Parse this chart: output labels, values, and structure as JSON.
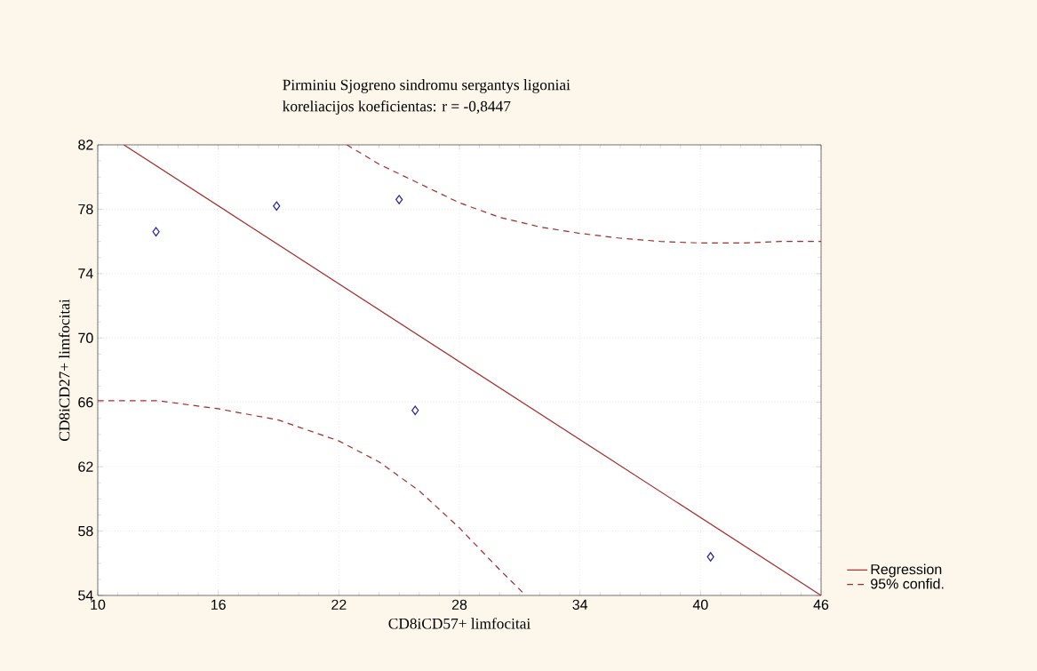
{
  "chart_data": {
    "type": "scatter",
    "title": "Pirminiu Sjogreno sindromu sergantys ligoniai",
    "subtitle": "koreliacijos koeficientas: r = -0,8447",
    "xlabel": "CD8iCD57+ limfocitai",
    "ylabel": "CD8iCD27+ limfocitai",
    "xlim": [
      10,
      46
    ],
    "xticks": [
      10,
      16,
      22,
      28,
      34,
      40,
      46
    ],
    "ylim": [
      54,
      82
    ],
    "yticks": [
      54,
      58,
      62,
      66,
      70,
      74,
      78,
      82
    ],
    "grid": true,
    "legend": "bottom right",
    "series": [
      {
        "color": "#2020a0",
        "marker": "diamond",
        "x": [
          12.9,
          18.9,
          25.0,
          25.8,
          40.5
        ],
        "values": [
          76.6,
          78.2,
          78.6,
          65.5,
          56.4
        ]
      },
      {
        "type": "line",
        "name": "Regression",
        "color": "#a52a2a",
        "line_style": "solid",
        "x": [
          11.3,
          46
        ],
        "values": [
          82,
          54
        ]
      },
      {
        "type": "line",
        "name": "95% confid.",
        "color": "#a52a2a",
        "line_style": "dashed",
        "x": [
          22.4,
          24,
          26,
          28,
          30,
          32,
          34,
          36,
          38,
          40,
          42,
          44,
          46
        ],
        "values": [
          82,
          80.8,
          79.6,
          78.4,
          77.5,
          76.9,
          76.5,
          76.2,
          76.0,
          75.9,
          75.9,
          76.0,
          76.0
        ]
      },
      {
        "type": "line",
        "color": "#a52a2a",
        "line_style": "dashed",
        "x": [
          10,
          13,
          16,
          19,
          22,
          24,
          26,
          28,
          30,
          31.3
        ],
        "values": [
          66.1,
          66.1,
          65.6,
          64.9,
          63.6,
          62.3,
          60.5,
          58.2,
          55.6,
          54
        ]
      }
    ]
  }
}
